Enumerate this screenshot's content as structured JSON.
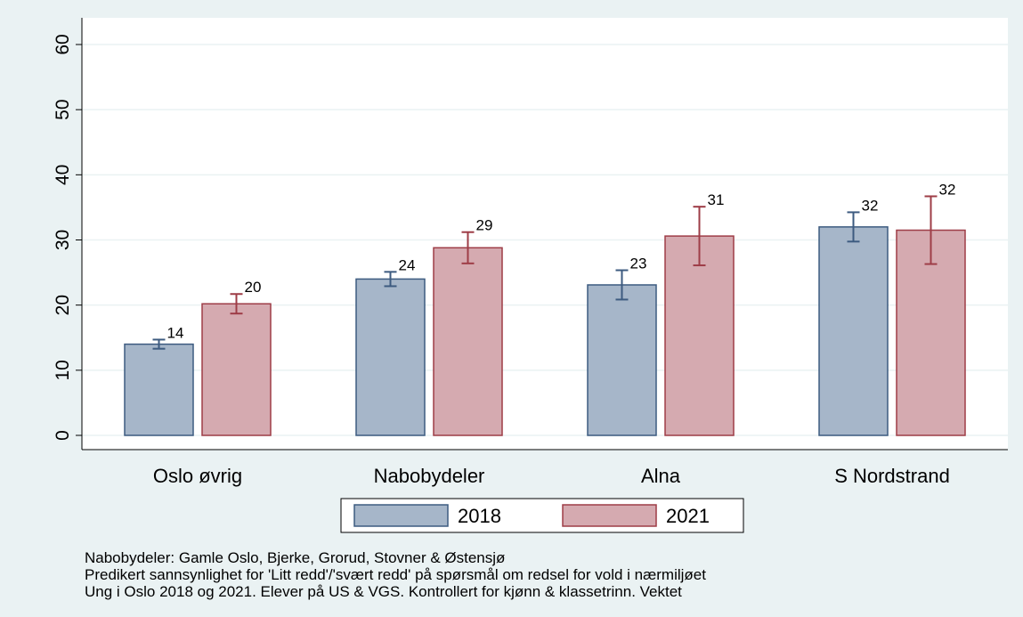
{
  "chart_data": {
    "type": "bar",
    "categories": [
      "Oslo øvrig",
      "Nabobydeler",
      "Alna",
      "S Nordstrand"
    ],
    "series": [
      {
        "name": "2018",
        "color": "#a6b6c9",
        "edge": "#3d5b80",
        "values": [
          14.0,
          24.0,
          23.1,
          32.0
        ],
        "errors": [
          0.7,
          1.1,
          2.25,
          2.25
        ],
        "value_labels": [
          "14",
          "24",
          "23",
          "32"
        ]
      },
      {
        "name": "2021",
        "color": "#d5aab0",
        "edge": "#9e3d47",
        "values": [
          20.2,
          28.8,
          30.6,
          31.5
        ],
        "errors": [
          1.5,
          2.4,
          4.5,
          5.2
        ],
        "value_labels": [
          "20",
          "29",
          "31",
          "32"
        ]
      }
    ],
    "ylim": [
      0,
      60
    ],
    "yticks": [
      0,
      10,
      20,
      30,
      40,
      50,
      60
    ],
    "grid": true,
    "legend": "bottom",
    "notes": [
      "Nabobydeler: Gamle Oslo, Bjerke, Grorud, Stovner & Østensjø",
      "Predikert sannsynlighet for 'Litt redd'/'svært redd' på spørsmål om redsel for vold i nærmiljøet",
      "Ung i Oslo 2018 og 2021. Elever på US & VGS. Kontrollert for kjønn & klassetrinn. Vektet"
    ]
  }
}
